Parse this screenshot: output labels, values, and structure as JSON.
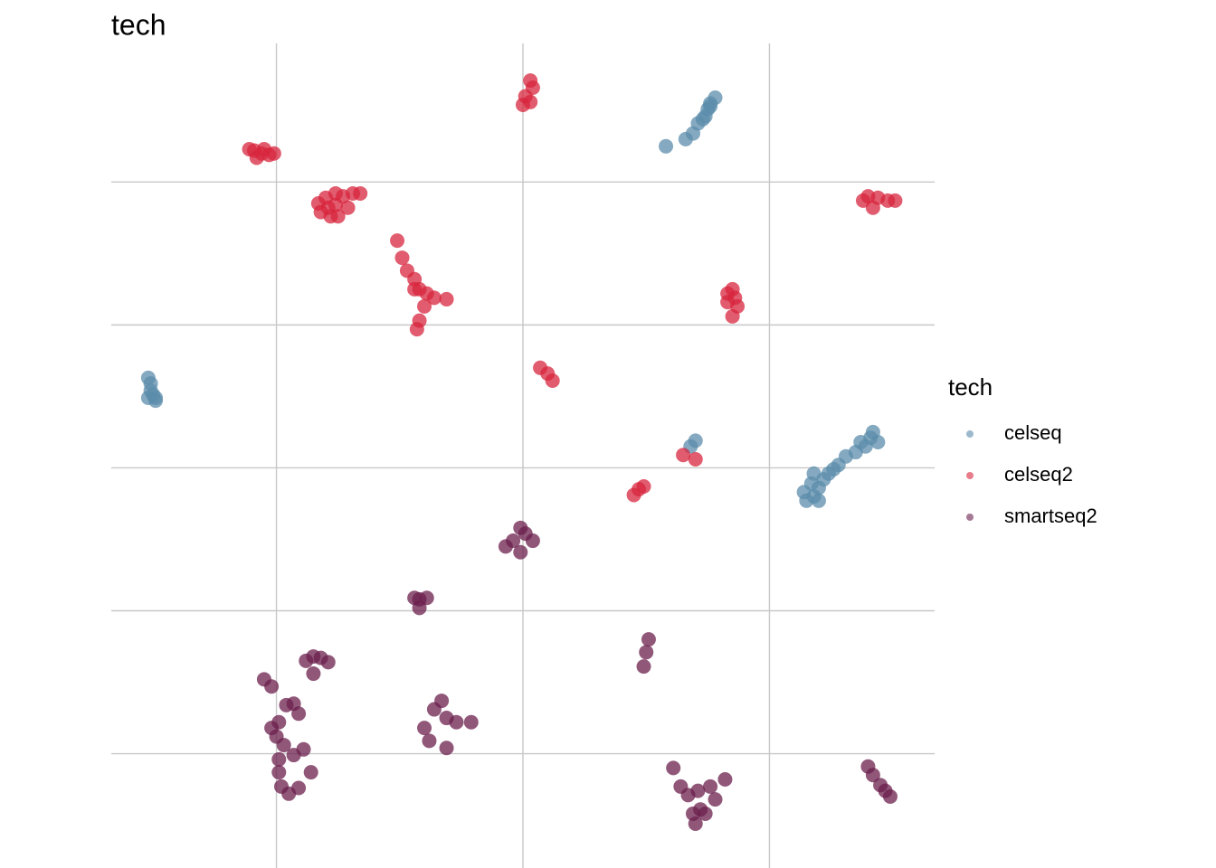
{
  "chart_data": {
    "type": "scatter",
    "title": "tech",
    "legend_title": "tech",
    "legend_position": "right",
    "grid": true,
    "xlim": [
      -16.7,
      16.7
    ],
    "ylim": [
      -28,
      29.7
    ],
    "xticks": [
      -10,
      0,
      10
    ],
    "yticks": [
      -20,
      -10,
      0,
      10,
      20
    ],
    "series": [
      {
        "name": "celseq",
        "color": "#5b8cab",
        "x": [
          5.8,
          6.6,
          6.9,
          7.1,
          7.4,
          7.5,
          7.6,
          7.8,
          7.6,
          7.3,
          -15.2,
          -15.1,
          -15.1,
          -15.0,
          -14.9,
          -15.2,
          -14.9,
          7.0,
          6.8,
          11.4,
          11.7,
          11.8,
          12.0,
          12.2,
          11.8,
          12.4,
          12.8,
          13.1,
          13.5,
          13.9,
          14.1,
          14.2,
          14.4,
          13.7,
          11.5,
          12.0,
          12.6
        ],
        "y": [
          22.5,
          23.0,
          23.4,
          24.1,
          24.6,
          25.1,
          25.5,
          25.9,
          25.3,
          24.4,
          6.3,
          5.9,
          5.4,
          5.1,
          4.7,
          4.9,
          4.9,
          1.9,
          1.5,
          -1.7,
          -1.1,
          -2.0,
          -1.4,
          -0.8,
          -0.4,
          -0.4,
          0.2,
          0.8,
          1.1,
          1.5,
          2.1,
          2.5,
          1.8,
          1.8,
          -2.3,
          -2.3,
          -0.1
        ]
      },
      {
        "name": "celseq2",
        "color": "#d7263d",
        "x": [
          -11.1,
          -10.9,
          -10.6,
          -10.3,
          -10.8,
          -10.5,
          -10.1,
          -8.3,
          -8.0,
          -7.6,
          -7.3,
          -6.9,
          -6.6,
          -8.2,
          -7.8,
          -7.5,
          -7.1,
          -7.6,
          -7.9,
          0.3,
          0.4,
          0.1,
          0,
          0.3,
          -5.1,
          -4.9,
          -4.7,
          -4.4,
          -4.2,
          -3.9,
          -3.6,
          -3.1,
          -4.0,
          -4.2,
          -4.3,
          -4.4,
          13.8,
          14.0,
          14.4,
          14.8,
          15.1,
          14.2,
          8.3,
          8.5,
          8.6,
          8.7,
          8.5,
          8.3,
          0.7,
          1.0,
          1.2,
          6.5,
          7.0,
          4.5,
          4.7,
          4.9
        ],
        "y": [
          22.3,
          22.2,
          22.0,
          21.9,
          21.7,
          22.3,
          22.0,
          18.5,
          18.9,
          19.2,
          19.0,
          19.2,
          19.2,
          17.9,
          17.6,
          17.6,
          18.2,
          18.4,
          18.2,
          27.1,
          26.6,
          26.0,
          25.4,
          25.6,
          15.9,
          14.7,
          13.8,
          13.2,
          12.5,
          12.2,
          11.9,
          11.8,
          11.3,
          10.3,
          9.7,
          12.5,
          18.7,
          19.0,
          18.9,
          18.7,
          18.7,
          18.2,
          12.2,
          12.5,
          11.9,
          11.3,
          10.6,
          11.6,
          7.0,
          6.6,
          6.1,
          0.9,
          0.6,
          -1.9,
          -1.5,
          -1.3
        ]
      },
      {
        "name": "smartseq2",
        "color": "#6b1f4c",
        "x": [
          -0.7,
          -0.4,
          -0.1,
          0.1,
          0.4,
          -0.1,
          -4.4,
          -4.2,
          -3.9,
          -4.2,
          5.1,
          5.0,
          4.9,
          -8.8,
          -8.5,
          -8.2,
          -7.9,
          -8.5,
          -10.5,
          -10.2,
          -9.6,
          -9.3,
          -9.9,
          -10.0,
          -9.7,
          -9.3,
          -8.9,
          -9.9,
          -9.9,
          -9.8,
          -9.5,
          -9.1,
          -8.6,
          -10.2,
          -9.1,
          -4.0,
          -3.6,
          -3.3,
          -3.1,
          -2.7,
          -2.1,
          -3.8,
          -3.1,
          6.1,
          6.4,
          6.7,
          7.1,
          7.6,
          8.2,
          7.2,
          7.0,
          7.4,
          7.8,
          6.9,
          14.0,
          14.2,
          14.5,
          14.7,
          14.9
        ],
        "y": [
          -5.5,
          -5.1,
          -4.2,
          -4.6,
          -5.1,
          -5.9,
          -9.1,
          -9.2,
          -9.1,
          -9.8,
          -12.0,
          -12.9,
          -13.9,
          -13.5,
          -13.2,
          -13.3,
          -13.6,
          -14.4,
          -14.8,
          -15.3,
          -16.6,
          -16.5,
          -17.8,
          -18.8,
          -19.4,
          -20.1,
          -19.7,
          -20.4,
          -21.3,
          -22.3,
          -22.8,
          -22.4,
          -21.3,
          -18.2,
          -17.2,
          -18.2,
          -16.9,
          -16.3,
          -17.5,
          -17.8,
          -17.8,
          -19.1,
          -19.6,
          -21.0,
          -22.3,
          -22.9,
          -22.6,
          -22.3,
          -21.8,
          -23.9,
          -24.9,
          -24.2,
          -23.2,
          -24.2,
          -20.9,
          -21.5,
          -22.2,
          -22.6,
          -23.0
        ]
      }
    ]
  }
}
